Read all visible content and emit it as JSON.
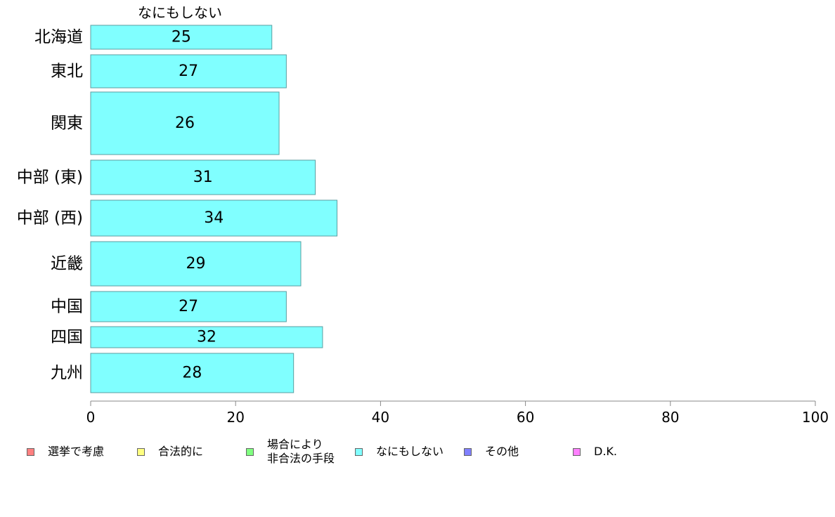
{
  "chart_data": {
    "type": "bar",
    "orientation": "horizontal",
    "column_title": "なにもしない",
    "categories": [
      "北海道",
      "東北",
      "関東",
      "中部 (東)",
      "中部 (西)",
      "近畿",
      "中国",
      "四国",
      "九州"
    ],
    "values": [
      25,
      27,
      26,
      31,
      34,
      29,
      27,
      32,
      28
    ],
    "data_labels": [
      "25",
      "27",
      "26",
      "31",
      "34",
      "29",
      "27",
      "32",
      "28"
    ],
    "bar_color": "#80FFFF",
    "bar_stroke": "#5A9EA0",
    "xlim": [
      0,
      100
    ],
    "x_ticks": [
      0,
      20,
      40,
      60,
      80,
      100
    ],
    "x_tick_labels": [
      "0",
      "20",
      "40",
      "60",
      "80",
      "100"
    ],
    "legend_position": "bottom",
    "legend": [
      {
        "label": "選挙で考慮",
        "color": "#FF8080"
      },
      {
        "label": "合法的に",
        "color": "#FFFF80"
      },
      {
        "label": "場合により\n非合法の手段",
        "color": "#80FF80"
      },
      {
        "label": "なにもしない",
        "color": "#80FFFF"
      },
      {
        "label": "その他",
        "color": "#8080FF"
      },
      {
        "label": "D.K.",
        "color": "#FF80FF"
      }
    ]
  }
}
